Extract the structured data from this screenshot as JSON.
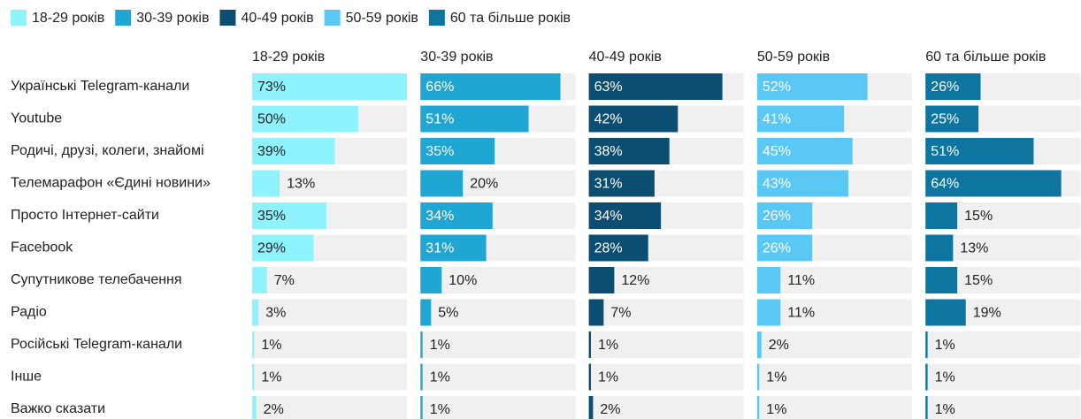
{
  "chart_data": {
    "type": "bar",
    "categories": [
      "Українські Telegram-канали",
      "Youtube",
      "Родичі, друзі, колеги, знайомі",
      "Телемарафон «Єдині новини»",
      "Просто Інтернет-сайти",
      "Facebook",
      "Супутникове телебачення",
      "Радіо",
      "Російські Telegram-канали",
      "Інше",
      "Важко сказати"
    ],
    "series": [
      {
        "name": "18-29 років",
        "color": "#8ef3fc",
        "values": [
          73,
          50,
          39,
          13,
          35,
          29,
          7,
          3,
          1,
          1,
          2
        ],
        "value_labels": [
          "73%",
          "50%",
          "39%",
          "13%",
          "35%",
          "29%",
          "7%",
          "3%",
          "1%",
          "1%",
          "2%"
        ]
      },
      {
        "name": "30-39 років",
        "color": "#1fa6d3",
        "values": [
          66,
          51,
          35,
          20,
          34,
          31,
          10,
          5,
          1,
          1,
          1
        ],
        "value_labels": [
          "66%",
          "51%",
          "35%",
          "20%",
          "34%",
          "31%",
          "10%",
          "5%",
          "1%",
          "1%",
          "1%"
        ]
      },
      {
        "name": "40-49 років",
        "color": "#0b4e72",
        "values": [
          63,
          42,
          38,
          31,
          34,
          28,
          12,
          7,
          1,
          1,
          2
        ],
        "value_labels": [
          "63%",
          "42%",
          "38%",
          "31%",
          "34%",
          "28%",
          "12%",
          "7%",
          "1%",
          "1%",
          "2%"
        ]
      },
      {
        "name": "50-59 років",
        "color": "#5ac8f5",
        "values": [
          52,
          41,
          45,
          43,
          26,
          26,
          11,
          11,
          2,
          1,
          1
        ],
        "value_labels": [
          "52%",
          "41%",
          "45%",
          "43%",
          "26%",
          "26%",
          "11%",
          "11%",
          "2%",
          "1%",
          "1%"
        ]
      },
      {
        "name": "60 та більше років",
        "color": "#0e75a0",
        "values": [
          26,
          25,
          51,
          64,
          15,
          13,
          15,
          19,
          1,
          1,
          1
        ],
        "value_labels": [
          "26%",
          "25%",
          "51%",
          "64%",
          "15%",
          "13%",
          "15%",
          "19%",
          "1%",
          "1%",
          "1%"
        ]
      }
    ],
    "xlim": [
      0,
      73
    ],
    "legend": "top-left"
  }
}
